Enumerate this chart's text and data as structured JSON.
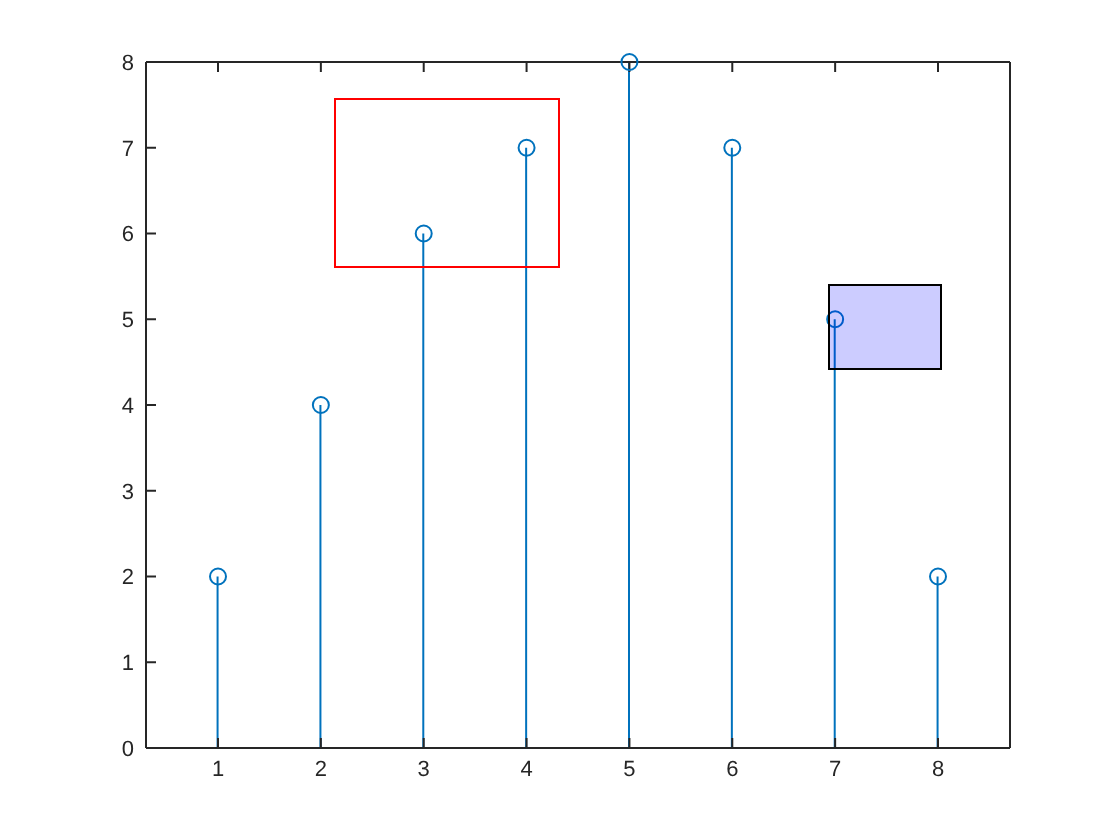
{
  "chart_data": {
    "type": "lollipop",
    "x": [
      1,
      2,
      3,
      4,
      5,
      6,
      7,
      8
    ],
    "values": [
      2,
      4,
      6,
      7,
      8,
      7,
      5,
      2
    ],
    "color": "#0072bd",
    "marker": "circle",
    "xlim": [
      0.3,
      8.7
    ],
    "xticks": [
      1,
      2,
      3,
      4,
      5,
      6,
      7,
      8
    ],
    "ylim": [
      0,
      8
    ],
    "yticks": [
      0,
      1,
      2,
      3,
      4,
      5,
      6,
      7,
      8
    ]
  }
}
